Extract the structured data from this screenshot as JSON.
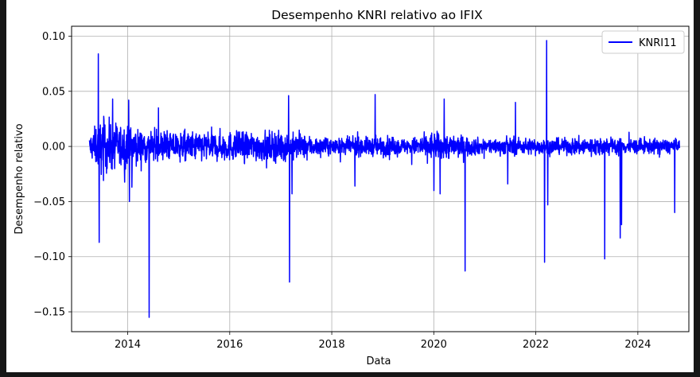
{
  "chart_data": {
    "type": "line",
    "title": "Desempenho KNRI relativo ao IFIX",
    "xlabel": "Data",
    "ylabel": "Desempenho relativo",
    "xlim": [
      2012.9,
      2025.0
    ],
    "ylim": [
      -0.168,
      0.109
    ],
    "x_ticks": [
      2014,
      2016,
      2018,
      2020,
      2022,
      2024
    ],
    "x_tick_labels": [
      "2014",
      "2016",
      "2018",
      "2020",
      "2022",
      "2024"
    ],
    "y_ticks": [
      0.1,
      0.05,
      0.0,
      -0.05,
      -0.1,
      -0.15
    ],
    "y_tick_labels": [
      "0.10",
      "0.05",
      "0.00",
      "−0.05",
      "−0.10",
      "−0.15"
    ],
    "grid": true,
    "legend_position": "top-right",
    "series": [
      {
        "name": "KNRI11",
        "color": "#0000ff",
        "x_start": 2013.25,
        "x_end": 2024.82,
        "noise_band": [
          [
            2013.25,
            0.01
          ],
          [
            2013.5,
            0.022
          ],
          [
            2014.0,
            0.016
          ],
          [
            2014.5,
            0.012
          ],
          [
            2015.0,
            0.012
          ],
          [
            2016.0,
            0.012
          ],
          [
            2017.0,
            0.012
          ],
          [
            2017.5,
            0.009
          ],
          [
            2018.0,
            0.006
          ],
          [
            2019.0,
            0.008
          ],
          [
            2019.5,
            0.006
          ],
          [
            2020.0,
            0.012
          ],
          [
            2020.5,
            0.009
          ],
          [
            2021.0,
            0.006
          ],
          [
            2022.0,
            0.007
          ],
          [
            2022.5,
            0.006
          ],
          [
            2023.0,
            0.008
          ],
          [
            2024.0,
            0.006
          ],
          [
            2024.82,
            0.006
          ]
        ],
        "spikes": [
          [
            2013.42,
            0.084
          ],
          [
            2013.44,
            -0.087
          ],
          [
            2013.7,
            0.043
          ],
          [
            2014.02,
            0.042
          ],
          [
            2014.03,
            -0.05
          ],
          [
            2014.08,
            -0.037
          ],
          [
            2014.42,
            -0.155
          ],
          [
            2014.6,
            0.035
          ],
          [
            2017.15,
            0.046
          ],
          [
            2017.17,
            -0.123
          ],
          [
            2017.22,
            -0.043
          ],
          [
            2018.45,
            -0.036
          ],
          [
            2018.85,
            0.047
          ],
          [
            2020.0,
            -0.04
          ],
          [
            2020.12,
            -0.043
          ],
          [
            2020.2,
            0.043
          ],
          [
            2020.61,
            -0.113
          ],
          [
            2021.45,
            -0.034
          ],
          [
            2021.6,
            0.04
          ],
          [
            2022.17,
            -0.105
          ],
          [
            2022.21,
            0.096
          ],
          [
            2022.23,
            -0.053
          ],
          [
            2023.35,
            -0.102
          ],
          [
            2023.65,
            -0.083
          ],
          [
            2023.68,
            -0.071
          ],
          [
            2024.72,
            -0.06
          ]
        ]
      }
    ]
  }
}
